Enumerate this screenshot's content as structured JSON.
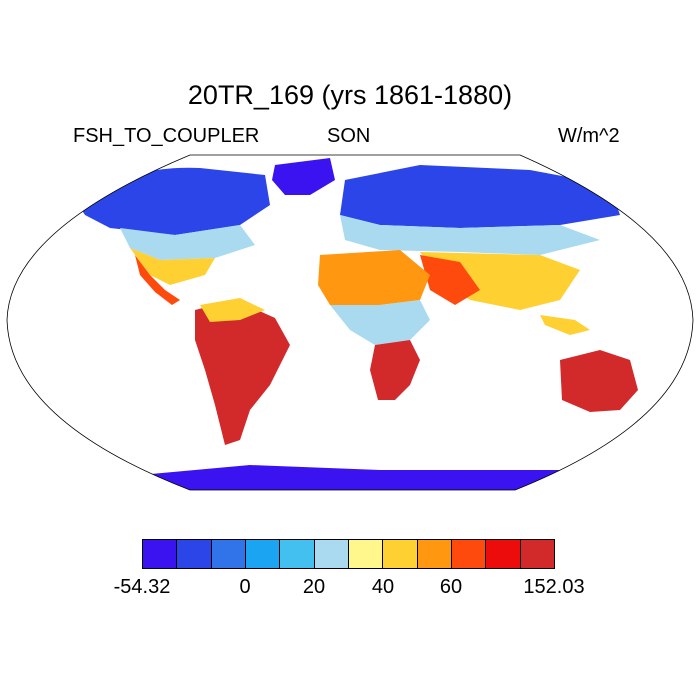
{
  "title": "20TR_169 (yrs 1861-1880)",
  "left_label": "FSH_TO_COUPLER",
  "center_label": "SON",
  "right_label": "W/m^2",
  "colorbar": {
    "colors": [
      "#3b12f0",
      "#2b45e8",
      "#3173e8",
      "#1aa4f2",
      "#43c0ef",
      "#a9daf0",
      "#fff68c",
      "#ffd032",
      "#ff9710",
      "#ff4a0e",
      "#ec0c0c",
      "#d22a2a"
    ],
    "tick_labels": [
      "-54.32",
      "0",
      "20",
      "40",
      "60",
      "152.03"
    ]
  },
  "map_colors": {
    "land_default": "#ffc83a",
    "ice": "#3b12f0",
    "outline": "#000000"
  }
}
